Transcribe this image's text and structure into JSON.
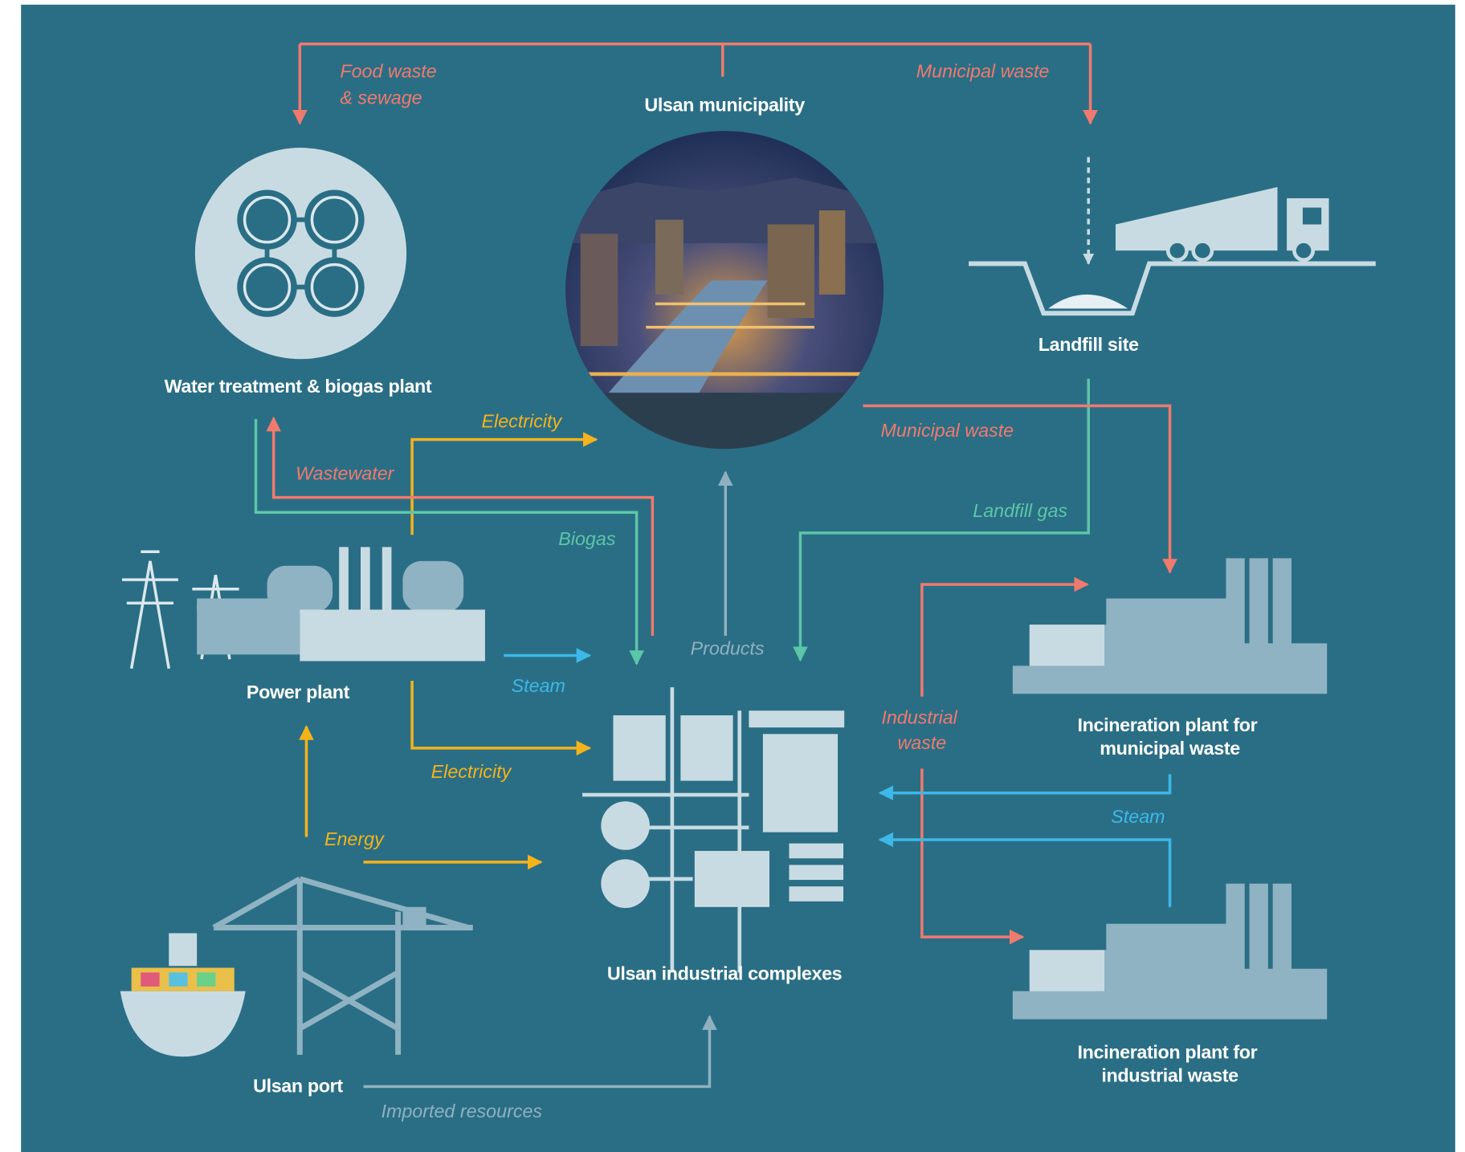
{
  "nodes": {
    "municipality": "Ulsan municipality",
    "water_plant": "Water treatment & biogas plant",
    "landfill": "Landfill site",
    "power_plant": "Power plant",
    "industrial": "Ulsan industrial complexes",
    "incinerator_municipal": [
      "Incineration plant for",
      "municipal waste"
    ],
    "incinerator_industrial": [
      "Incineration plant  for",
      "industrial waste"
    ],
    "port": "Ulsan port"
  },
  "flows": {
    "food_waste": [
      "Food waste",
      "& sewage"
    ],
    "municipal_waste_top": "Municipal waste",
    "municipal_waste": "Municipal waste",
    "landfill_gas": "Landfill gas",
    "electricity_top": "Electricity",
    "wastewater": "Wastewater",
    "biogas": "Biogas",
    "products": "Products",
    "steam_left": "Steam",
    "electricity_bottom": "Electricity",
    "industrial_waste": [
      "Industrial",
      "waste"
    ],
    "steam_right": "Steam",
    "energy": "Energy",
    "imported": "Imported resources"
  }
}
